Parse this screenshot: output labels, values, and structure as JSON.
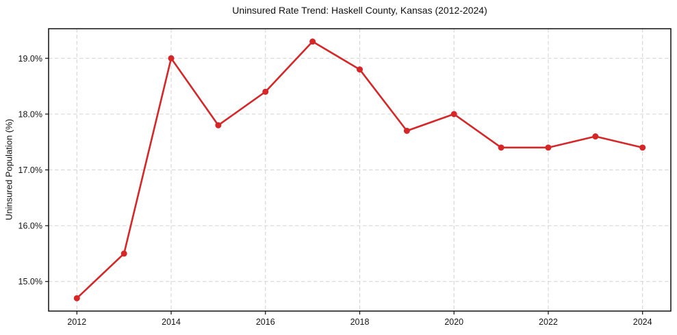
{
  "chart_data": {
    "type": "line",
    "title": "Uninsured Rate Trend: Haskell County, Kansas (2012-2024)",
    "xlabel": "",
    "ylabel": "Uninsured Population (%)",
    "x": [
      2012,
      2013,
      2014,
      2015,
      2016,
      2017,
      2018,
      2019,
      2020,
      2021,
      2022,
      2023,
      2024
    ],
    "values": [
      14.7,
      15.5,
      19.0,
      17.8,
      18.4,
      19.3,
      18.8,
      17.7,
      18.0,
      17.4,
      17.4,
      17.6,
      17.4
    ],
    "xlim": [
      2011.4,
      2024.6
    ],
    "ylim": [
      14.47,
      19.53
    ],
    "xticks": [
      2012,
      2014,
      2016,
      2018,
      2020,
      2022,
      2024
    ],
    "xtick_labels": [
      "2012",
      "2014",
      "2016",
      "2018",
      "2020",
      "2022",
      "2024"
    ],
    "yticks": [
      15.0,
      16.0,
      17.0,
      18.0,
      19.0
    ],
    "ytick_labels": [
      "15.0%",
      "16.0%",
      "17.0%",
      "18.0%",
      "19.0%"
    ],
    "grid": true,
    "grid_style": "dashed",
    "legend": false,
    "line_color": "#d62728",
    "marker": "circle",
    "background_color": "#ffffff"
  }
}
